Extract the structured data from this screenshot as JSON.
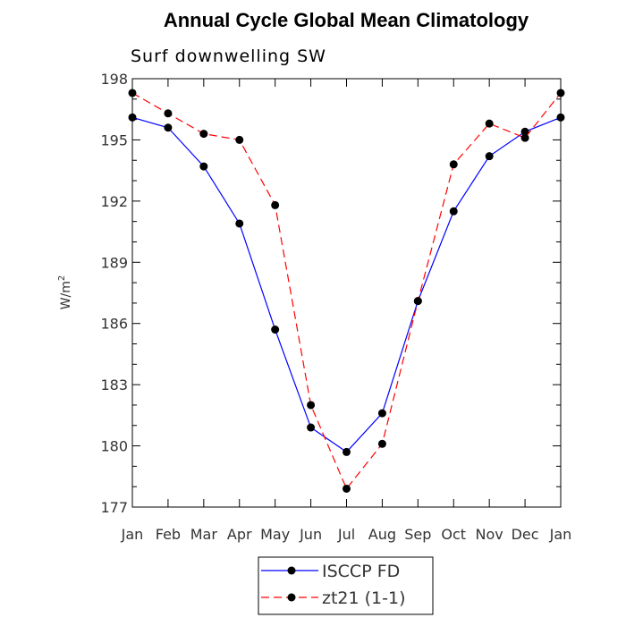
{
  "chart_data": {
    "type": "line",
    "title": "Annual Cycle Global Mean Climatology",
    "subtitle": "Surf downwelling SW",
    "ylabel": "W/m",
    "ylabel_sup": "2",
    "xlabel": "",
    "categories": [
      "Jan",
      "Feb",
      "Mar",
      "Apr",
      "May",
      "Jun",
      "Jul",
      "Aug",
      "Sep",
      "Oct",
      "Nov",
      "Dec",
      "Jan"
    ],
    "ylim": [
      177,
      198
    ],
    "yticks": [
      177,
      180,
      183,
      186,
      189,
      192,
      195,
      198
    ],
    "series": [
      {
        "name": "ISCCP FD",
        "color": "#0000ff",
        "dash": "solid",
        "values": [
          196.1,
          195.6,
          193.7,
          190.9,
          185.7,
          180.9,
          179.7,
          181.6,
          187.1,
          191.5,
          194.2,
          195.4,
          196.1
        ]
      },
      {
        "name": "zt21 (1-1)",
        "color": "#ff0000",
        "dash": "dashed",
        "values": [
          197.3,
          196.3,
          195.3,
          195.0,
          191.8,
          182.0,
          177.9,
          180.1,
          187.1,
          193.8,
          195.8,
          195.1,
          197.3
        ]
      }
    ],
    "legend_position": "bottom-center"
  }
}
